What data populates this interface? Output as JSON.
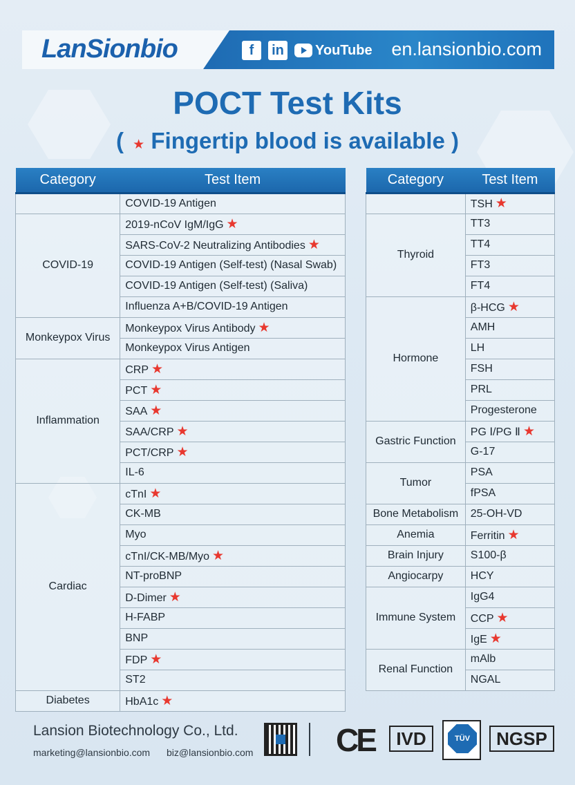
{
  "header": {
    "logo": "LanSionbio",
    "social": [
      "f",
      "in",
      "YouTube"
    ],
    "website": "en.lansionbio.com"
  },
  "title": "POCT Test Kits",
  "subtitle": {
    "open": "(",
    "star": "★",
    "text": "Fingertip blood is available",
    "close": ")"
  },
  "table_headers": {
    "category": "Category",
    "test_item": "Test Item"
  },
  "left_table": [
    {
      "category": "",
      "items": [
        {
          "name": "COVID-19 Antigen",
          "star": false
        }
      ]
    },
    {
      "category": "COVID-19",
      "items": [
        {
          "name": "2019-nCoV IgM/IgG",
          "star": true
        },
        {
          "name": "SARS-CoV-2 Neutralizing Antibodies",
          "star": true
        },
        {
          "name": "COVID-19 Antigen (Self-test) (Nasal Swab)",
          "star": false
        },
        {
          "name": "COVID-19 Antigen (Self-test) (Saliva)",
          "star": false
        },
        {
          "name": "Influenza A+B/COVID-19 Antigen",
          "star": false
        }
      ]
    },
    {
      "category": "Monkeypox Virus",
      "items": [
        {
          "name": "Monkeypox Virus Antibody",
          "star": true
        },
        {
          "name": "Monkeypox Virus Antigen",
          "star": false
        }
      ]
    },
    {
      "category": "Inflammation",
      "items": [
        {
          "name": "CRP",
          "star": true
        },
        {
          "name": "PCT",
          "star": true
        },
        {
          "name": "SAA",
          "star": true
        },
        {
          "name": "SAA/CRP",
          "star": true
        },
        {
          "name": "PCT/CRP",
          "star": true
        },
        {
          "name": "IL-6",
          "star": false
        }
      ]
    },
    {
      "category": "Cardiac",
      "items": [
        {
          "name": "cTnI",
          "star": true
        },
        {
          "name": "CK-MB",
          "star": false
        },
        {
          "name": "Myo",
          "star": false
        },
        {
          "name": "cTnI/CK-MB/Myo",
          "star": true
        },
        {
          "name": "NT-proBNP",
          "star": false
        },
        {
          "name": "D-Dimer",
          "star": true
        },
        {
          "name": "H-FABP",
          "star": false
        },
        {
          "name": "BNP",
          "star": false
        },
        {
          "name": "FDP",
          "star": true
        },
        {
          "name": "ST2",
          "star": false
        }
      ]
    },
    {
      "category": "Diabetes",
      "items": [
        {
          "name": "HbA1c",
          "star": true
        }
      ]
    }
  ],
  "right_table": [
    {
      "category": "",
      "items": [
        {
          "name": "TSH",
          "star": true
        }
      ]
    },
    {
      "category": "Thyroid",
      "items": [
        {
          "name": "TT3",
          "star": false
        },
        {
          "name": "TT4",
          "star": false
        },
        {
          "name": "FT3",
          "star": false
        },
        {
          "name": "FT4",
          "star": false
        }
      ]
    },
    {
      "category": "Hormone",
      "items": [
        {
          "name": "β-HCG",
          "star": true
        },
        {
          "name": "AMH",
          "star": false
        },
        {
          "name": "LH",
          "star": false
        },
        {
          "name": "FSH",
          "star": false
        },
        {
          "name": "PRL",
          "star": false
        },
        {
          "name": "Progesterone",
          "star": false
        }
      ]
    },
    {
      "category": "Gastric Function",
      "items": [
        {
          "name": "PG Ⅰ/PG Ⅱ",
          "star": true
        },
        {
          "name": "G-17",
          "star": false
        }
      ]
    },
    {
      "category": "Tumor",
      "items": [
        {
          "name": "PSA",
          "star": false
        },
        {
          "name": "fPSA",
          "star": false
        }
      ]
    },
    {
      "category": "Bone Metabolism",
      "items": [
        {
          "name": "25-OH-VD",
          "star": false
        }
      ]
    },
    {
      "category": "Anemia",
      "items": [
        {
          "name": "Ferritin",
          "star": true
        }
      ]
    },
    {
      "category": "Brain Injury",
      "items": [
        {
          "name": "S100-β",
          "star": false
        }
      ]
    },
    {
      "category": "Angiocarpy",
      "items": [
        {
          "name": "HCY",
          "star": false
        }
      ]
    },
    {
      "category": "Immune System",
      "items": [
        {
          "name": "IgG4",
          "star": false
        },
        {
          "name": "CCP",
          "star": true
        },
        {
          "name": "IgE",
          "star": true
        }
      ]
    },
    {
      "category": "Renal Function",
      "items": [
        {
          "name": "mAlb",
          "star": false
        },
        {
          "name": "NGAL",
          "star": false
        }
      ]
    }
  ],
  "footer": {
    "company": "Lansion Biotechnology Co., Ltd.",
    "email_marketing": "marketing@lansionbio.com",
    "email_biz": "biz@lansionbio.com",
    "certs": {
      "ce": "CE",
      "ivd": "IVD",
      "tuv": "TÜV SÜD",
      "ngsp": "NGSP"
    }
  },
  "colors": {
    "brand_blue": "#1e6bb3",
    "star_red": "#e8382f"
  }
}
